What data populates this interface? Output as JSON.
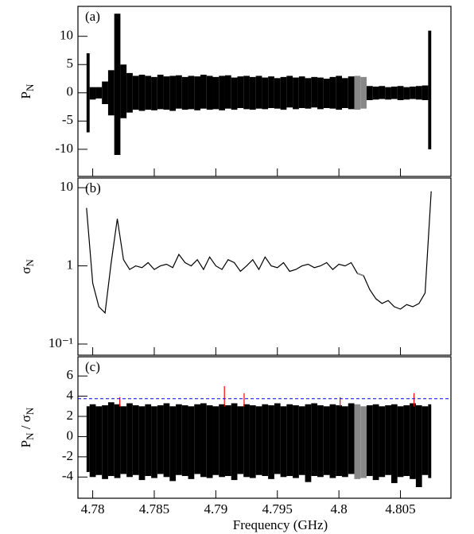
{
  "chart_data": [
    {
      "type": "band",
      "annotation": "(a)",
      "ylabel": [
        "P",
        "N"
      ],
      "xlim": [
        4.7788,
        4.8091
      ],
      "ylim": [
        -14.8,
        15.3
      ],
      "yticks": [
        -10,
        -5,
        0,
        5,
        10
      ],
      "highlight_range": [
        4.8015,
        4.8023
      ],
      "highlight_color": "#888888",
      "x": [
        4.7795,
        4.78,
        4.7805,
        4.781,
        4.7815,
        4.782,
        4.7825,
        4.783,
        4.7835,
        4.784,
        4.7845,
        4.785,
        4.7855,
        4.786,
        4.7865,
        4.787,
        4.7875,
        4.788,
        4.7885,
        4.789,
        4.7895,
        4.79,
        4.7905,
        4.791,
        4.7915,
        4.792,
        4.7925,
        4.793,
        4.7935,
        4.794,
        4.7945,
        4.795,
        4.7955,
        4.796,
        4.7965,
        4.797,
        4.7975,
        4.798,
        4.7985,
        4.799,
        4.7995,
        4.8,
        4.8005,
        4.801,
        4.8015,
        4.802,
        4.8025,
        4.803,
        4.8035,
        4.804,
        4.8045,
        4.805,
        4.8055,
        4.806,
        4.8065,
        4.807,
        4.8075
      ],
      "series": [
        {
          "color": "#000000",
          "values": [
            7,
            1,
            1,
            2,
            4,
            14,
            5,
            3.5,
            3,
            3.2,
            3,
            2.8,
            3.2,
            2.9,
            3,
            3.1,
            2.8,
            3,
            2.9,
            3.2,
            3,
            2.8,
            3,
            3.1,
            2.7,
            2.9,
            3,
            2.8,
            3,
            2.7,
            2.9,
            2.6,
            2.8,
            3,
            2.7,
            2.9,
            2.6,
            2.8,
            2.7,
            2.5,
            2.8,
            3,
            2.6,
            2.9,
            3,
            2.8,
            1.2,
            1.1,
            1.2,
            1,
            1.1,
            1.2,
            1,
            1.1,
            1.2,
            1.3,
            11
          ]
        },
        {
          "color": "#000000",
          "values": [
            -7,
            -1.2,
            -1,
            -2,
            -4,
            -11,
            -4.5,
            -3.5,
            -3,
            -3.2,
            -3,
            -3.1,
            -2.9,
            -3,
            -3.2,
            -2.8,
            -3,
            -2.9,
            -3.1,
            -2.8,
            -3,
            -2.9,
            -3.1,
            -2.8,
            -3,
            -2.7,
            -2.9,
            -3,
            -2.8,
            -2.9,
            -2.7,
            -2.8,
            -3,
            -2.6,
            -2.9,
            -2.7,
            -2.8,
            -2.6,
            -2.9,
            -2.7,
            -2.8,
            -3,
            -2.7,
            -2.9,
            -3,
            -2.8,
            -1.3,
            -1.2,
            -1.1,
            -1.2,
            -1.1,
            -1.3,
            -1.2,
            -1.1,
            -1.2,
            -1.3,
            -10
          ]
        }
      ]
    },
    {
      "type": "line",
      "annotation": "(b)",
      "ylabel": [
        "σ",
        "N"
      ],
      "log_scale": true,
      "xlim": [
        4.7788,
        4.8091
      ],
      "ylim": [
        0.072,
        13.3
      ],
      "yticks": [
        {
          "value": 0.1,
          "label": "10⁻¹"
        },
        1,
        10
      ],
      "highlight_range": [
        4.8015,
        4.8023
      ],
      "highlight_color": "#888888",
      "x": [
        4.7795,
        4.78,
        4.7805,
        4.781,
        4.7815,
        4.782,
        4.7825,
        4.783,
        4.7835,
        4.784,
        4.7845,
        4.785,
        4.7855,
        4.786,
        4.7865,
        4.787,
        4.7875,
        4.788,
        4.7885,
        4.789,
        4.7895,
        4.79,
        4.7905,
        4.791,
        4.7915,
        4.792,
        4.7925,
        4.793,
        4.7935,
        4.794,
        4.7945,
        4.795,
        4.7955,
        4.796,
        4.7965,
        4.797,
        4.7975,
        4.798,
        4.7985,
        4.799,
        4.7995,
        4.8,
        4.8005,
        4.801,
        4.8015,
        4.802,
        4.8025,
        4.803,
        4.8035,
        4.804,
        4.8045,
        4.805,
        4.8055,
        4.806,
        4.8065,
        4.807,
        4.8075
      ],
      "series": [
        {
          "color": "#000000",
          "values": [
            5.5,
            0.6,
            0.3,
            0.25,
            1.1,
            4,
            1.2,
            0.9,
            1,
            0.95,
            1.1,
            0.9,
            1,
            1.05,
            0.95,
            1.4,
            1.1,
            1,
            1.2,
            0.9,
            1.3,
            1,
            0.9,
            1.2,
            1.1,
            0.85,
            1,
            1.2,
            0.9,
            1.3,
            1,
            0.95,
            1.1,
            0.85,
            0.9,
            1,
            1.05,
            0.95,
            1,
            1.1,
            0.9,
            1.05,
            1,
            1.1,
            0.8,
            0.75,
            0.5,
            0.38,
            0.33,
            0.36,
            0.3,
            0.28,
            0.32,
            0.3,
            0.33,
            0.45,
            9
          ]
        }
      ]
    },
    {
      "type": "band",
      "annotation": "(c)",
      "ylabel": [
        "P",
        "N",
        " / σ",
        "N"
      ],
      "xlabel": "Frequency (GHz)",
      "xlim": [
        4.7788,
        4.8091
      ],
      "ylim": [
        -6.1,
        7.9
      ],
      "yticks": [
        -4,
        -2,
        0,
        2,
        4,
        6
      ],
      "xticks": [
        4.78,
        4.785,
        4.79,
        4.795,
        4.8,
        4.805
      ],
      "highlight_range": [
        4.8015,
        4.8023
      ],
      "highlight_color": "#888888",
      "threshold": 3.75,
      "threshold_color": "#0000ff",
      "peaks": {
        "color": "#ff0000",
        "x": [
          4.7822,
          4.7907,
          4.7923,
          4.8001,
          4.8061
        ],
        "values": [
          3.9,
          5,
          4.3,
          3.9,
          4.3
        ]
      },
      "x": [
        4.7795,
        4.78,
        4.7805,
        4.781,
        4.7815,
        4.782,
        4.7825,
        4.783,
        4.7835,
        4.784,
        4.7845,
        4.785,
        4.7855,
        4.786,
        4.7865,
        4.787,
        4.7875,
        4.788,
        4.7885,
        4.789,
        4.7895,
        4.79,
        4.7905,
        4.791,
        4.7915,
        4.792,
        4.7925,
        4.793,
        4.7935,
        4.794,
        4.7945,
        4.795,
        4.7955,
        4.796,
        4.7965,
        4.797,
        4.7975,
        4.798,
        4.7985,
        4.799,
        4.7995,
        4.8,
        4.8005,
        4.801,
        4.8015,
        4.802,
        4.8025,
        4.803,
        4.8035,
        4.804,
        4.8045,
        4.805,
        4.8055,
        4.806,
        4.8065,
        4.807,
        4.8075
      ],
      "series": [
        {
          "color": "#000000",
          "values": [
            3,
            3.2,
            3,
            3.1,
            3.4,
            3.2,
            3,
            3.3,
            3.1,
            3,
            3.2,
            3,
            3.1,
            3.3,
            3,
            3.2,
            3.1,
            3,
            3.2,
            3.3,
            3.1,
            3,
            3.2,
            3.1,
            3.3,
            3,
            3.2,
            3.1,
            3,
            3.2,
            3.1,
            3.3,
            3,
            3.2,
            3.1,
            3,
            3.2,
            3.3,
            3.1,
            3,
            3.2,
            3.1,
            3,
            3.3,
            3.2,
            3,
            3.1,
            3.2,
            3,
            3.1,
            3.2,
            3,
            3.1,
            3.3,
            3.1,
            3,
            3.2
          ]
        },
        {
          "color": "#000000",
          "values": [
            -3.5,
            -4,
            -3.8,
            -4.2,
            -3.9,
            -4.1,
            -3.7,
            -4,
            -3.8,
            -4.3,
            -3.9,
            -4.1,
            -3.7,
            -4,
            -4.4,
            -3.8,
            -3.9,
            -4.2,
            -3.7,
            -4,
            -4.1,
            -3.8,
            -4,
            -3.9,
            -4.3,
            -3.7,
            -4,
            -4.1,
            -3.8,
            -3.9,
            -4.2,
            -3.7,
            -4,
            -3.9,
            -4.1,
            -3.8,
            -4.5,
            -3.9,
            -4,
            -3.8,
            -4.1,
            -3.9,
            -4,
            -3.7,
            -4.2,
            -4.1,
            -3.9,
            -4.3,
            -4,
            -3.8,
            -4.6,
            -4,
            -3.9,
            -4.2,
            -5,
            -3.8,
            -4.1
          ]
        }
      ]
    }
  ]
}
